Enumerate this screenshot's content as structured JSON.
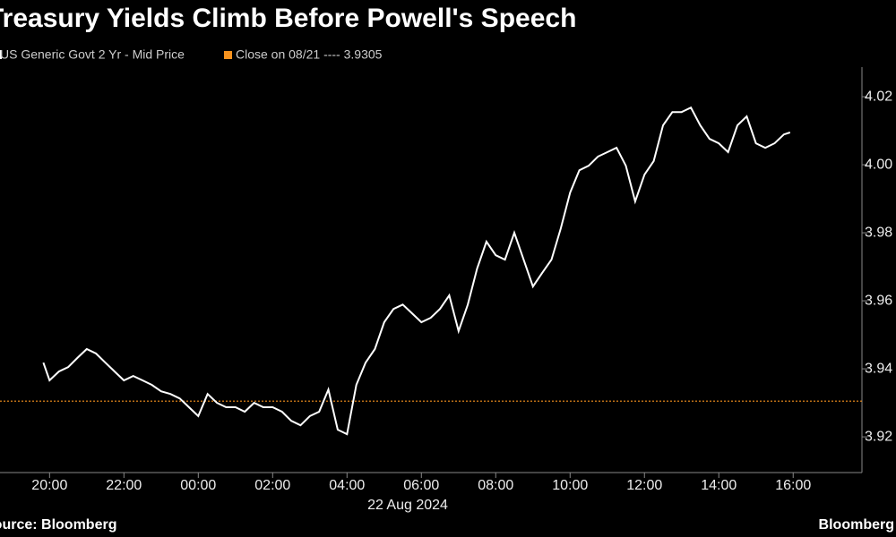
{
  "chart_data": {
    "type": "line",
    "title": "Treasury Yields Climb Before Powell's Speech",
    "source": "Source: Bloomberg",
    "brand": "Bloomberg",
    "x_annotation": "22 Aug 2024",
    "series": [
      {
        "name": "US Generic Govt 2 Yr - Mid Price",
        "color": "#ffffff",
        "x": [
          "2024-08-21T19:50",
          "2024-08-21T20:00",
          "2024-08-21T20:15",
          "2024-08-21T20:30",
          "2024-08-21T20:45",
          "2024-08-21T21:00",
          "2024-08-21T21:15",
          "2024-08-21T21:30",
          "2024-08-21T21:45",
          "2024-08-21T22:00",
          "2024-08-21T22:15",
          "2024-08-21T22:30",
          "2024-08-21T22:45",
          "2024-08-21T23:00",
          "2024-08-21T23:15",
          "2024-08-21T23:30",
          "2024-08-21T23:45",
          "2024-08-22T00:00",
          "2024-08-22T00:15",
          "2024-08-22T00:30",
          "2024-08-22T00:45",
          "2024-08-22T01:00",
          "2024-08-22T01:15",
          "2024-08-22T01:30",
          "2024-08-22T01:45",
          "2024-08-22T02:00",
          "2024-08-22T02:15",
          "2024-08-22T02:30",
          "2024-08-22T02:45",
          "2024-08-22T03:00",
          "2024-08-22T03:15",
          "2024-08-22T03:30",
          "2024-08-22T03:45",
          "2024-08-22T04:00",
          "2024-08-22T04:15",
          "2024-08-22T04:30",
          "2024-08-22T04:45",
          "2024-08-22T05:00",
          "2024-08-22T05:15",
          "2024-08-22T05:30",
          "2024-08-22T05:45",
          "2024-08-22T06:00",
          "2024-08-22T06:15",
          "2024-08-22T06:30",
          "2024-08-22T06:45",
          "2024-08-22T07:00",
          "2024-08-22T07:15",
          "2024-08-22T07:30",
          "2024-08-22T07:45",
          "2024-08-22T08:00",
          "2024-08-22T08:15",
          "2024-08-22T08:30",
          "2024-08-22T08:45",
          "2024-08-22T09:00",
          "2024-08-22T09:15",
          "2024-08-22T09:30",
          "2024-08-22T09:45",
          "2024-08-22T10:00",
          "2024-08-22T10:15",
          "2024-08-22T10:30",
          "2024-08-22T10:45",
          "2024-08-22T11:00",
          "2024-08-22T11:15",
          "2024-08-22T11:30",
          "2024-08-22T11:45",
          "2024-08-22T12:00",
          "2024-08-22T12:15",
          "2024-08-22T12:30",
          "2024-08-22T12:45",
          "2024-08-22T13:00",
          "2024-08-22T13:15",
          "2024-08-22T13:30",
          "2024-08-22T13:45",
          "2024-08-22T14:00",
          "2024-08-22T14:15",
          "2024-08-22T14:30",
          "2024-08-22T14:45",
          "2024-08-22T15:00",
          "2024-08-22T15:15",
          "2024-08-22T15:30",
          "2024-08-22T15:45",
          "2024-08-22T15:55"
        ],
        "values": [
          3.9418,
          3.9366,
          3.9392,
          3.9405,
          3.9432,
          3.9458,
          3.9445,
          3.9418,
          3.9392,
          3.9366,
          3.9379,
          3.9366,
          3.9353,
          3.9334,
          3.9326,
          3.9313,
          3.9287,
          3.9261,
          3.9326,
          3.93,
          3.9287,
          3.9287,
          3.9274,
          3.93,
          3.9287,
          3.9287,
          3.9274,
          3.9247,
          3.9234,
          3.9261,
          3.9274,
          3.9339,
          3.9221,
          3.9208,
          3.9353,
          3.9418,
          3.9458,
          3.9537,
          3.9576,
          3.9589,
          3.9563,
          3.9537,
          3.955,
          3.9576,
          3.9616,
          3.9511,
          3.9589,
          3.9695,
          3.9774,
          3.9734,
          3.9721,
          3.98,
          3.9721,
          3.9642,
          3.9682,
          3.9721,
          3.9813,
          3.9918,
          3.9984,
          3.9997,
          4.0024,
          4.0037,
          4.005,
          3.9997,
          3.9892,
          3.9971,
          4.0011,
          4.0116,
          4.0155,
          4.0155,
          4.0168,
          4.0116,
          4.0076,
          4.0063,
          4.0037,
          4.0116,
          4.0142,
          4.0063,
          4.005,
          4.0063,
          4.0089,
          4.0095
        ]
      }
    ],
    "reference": {
      "label": "Close on 08/21 ---- 3.9305",
      "value": 3.9305,
      "color": "#f7931e"
    },
    "xlim": [
      "2024-08-21T18:40",
      "2024-08-22T17:51"
    ],
    "xticks": [
      {
        "value": "2024-08-21T20:00",
        "label": "20:00"
      },
      {
        "value": "2024-08-21T22:00",
        "label": "22:00"
      },
      {
        "value": "2024-08-22T00:00",
        "label": "00:00"
      },
      {
        "value": "2024-08-22T02:00",
        "label": "02:00"
      },
      {
        "value": "2024-08-22T04:00",
        "label": "04:00"
      },
      {
        "value": "2024-08-22T06:00",
        "label": "06:00"
      },
      {
        "value": "2024-08-22T08:00",
        "label": "08:00"
      },
      {
        "value": "2024-08-22T10:00",
        "label": "10:00"
      },
      {
        "value": "2024-08-22T12:00",
        "label": "12:00"
      },
      {
        "value": "2024-08-22T14:00",
        "label": "14:00"
      },
      {
        "value": "2024-08-22T16:00",
        "label": "16:00"
      }
    ],
    "ylim": [
      3.9095,
      4.0287
    ],
    "yticks": [
      3.92,
      3.94,
      3.96,
      3.98,
      {
        "value": 4.0,
        "label": "4.00"
      },
      4.02
    ]
  }
}
